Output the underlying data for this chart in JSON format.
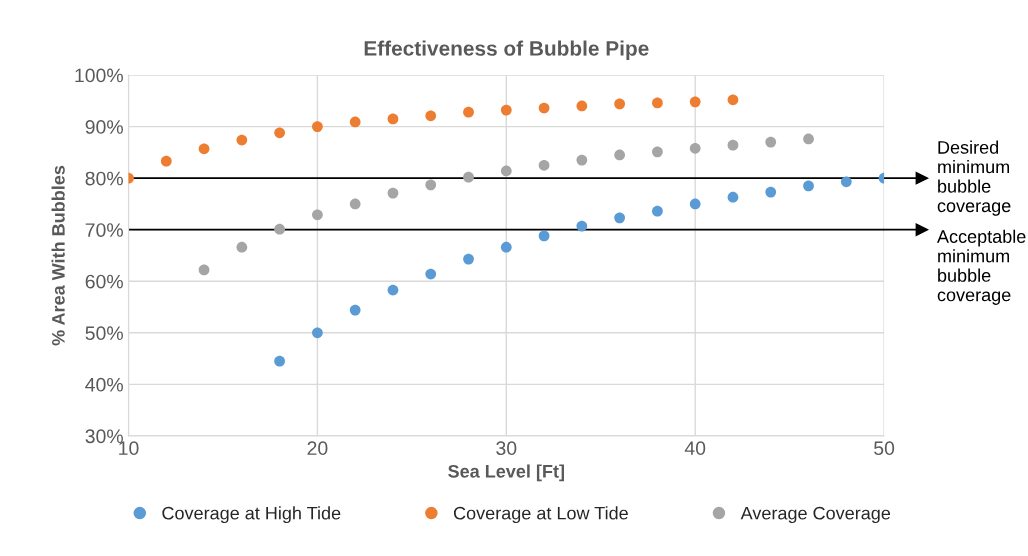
{
  "chart_data": {
    "type": "scatter",
    "title": "Effectiveness of Bubble Pipe",
    "xlabel": "Sea Level [Ft]",
    "ylabel": "% Area With Bubbles",
    "xlim": [
      10,
      50
    ],
    "xticks": [
      10,
      20,
      30,
      40,
      50
    ],
    "ylim": [
      30,
      100
    ],
    "yticks": [
      {
        "value": 30,
        "label": "30%"
      },
      {
        "value": 40,
        "label": "40%"
      },
      {
        "value": 50,
        "label": "50%"
      },
      {
        "value": 60,
        "label": "60%"
      },
      {
        "value": 70,
        "label": "70%"
      },
      {
        "value": 80,
        "label": "80%"
      },
      {
        "value": 90,
        "label": "90%"
      },
      {
        "value": 100,
        "label": "100%"
      }
    ],
    "grid": true,
    "legend": "bottom",
    "marker": "circle",
    "series": [
      {
        "name": "Coverage at High Tide",
        "color": "#5b9bd5",
        "x": [
          18,
          20,
          22,
          24,
          26,
          28,
          30,
          32,
          34,
          36,
          38,
          40,
          42,
          44,
          46,
          48,
          50
        ],
        "values": [
          44.5,
          50,
          54.4,
          58.3,
          61.4,
          64.3,
          66.6,
          68.8,
          70.7,
          72.3,
          73.6,
          75,
          76.3,
          77.3,
          78.5,
          79.3,
          80
        ]
      },
      {
        "name": "Coverage at Low Tide",
        "color": "#ed7d31",
        "x": [
          10,
          12,
          14,
          16,
          18,
          20,
          22,
          24,
          26,
          28,
          30,
          32,
          34,
          36,
          38,
          40,
          42
        ],
        "values": [
          80,
          83.3,
          85.7,
          87.4,
          88.8,
          90,
          90.9,
          91.5,
          92.1,
          92.8,
          93.2,
          93.6,
          94,
          94.4,
          94.6,
          94.8,
          95.2
        ]
      },
      {
        "name": "Average Coverage",
        "color": "#a5a5a5",
        "x": [
          14,
          16,
          18,
          20,
          22,
          24,
          26,
          28,
          30,
          32,
          34,
          36,
          38,
          40,
          42,
          44,
          46
        ],
        "values": [
          62.2,
          66.6,
          70.1,
          72.9,
          75,
          77.1,
          78.7,
          80.2,
          81.4,
          82.5,
          83.5,
          84.5,
          85.1,
          85.8,
          86.4,
          87,
          87.6
        ]
      }
    ],
    "ref_lines": [
      {
        "axis": "y",
        "value": 80,
        "label": "Desired\nminimum\nbubble\ncoverage",
        "color": "#000000"
      },
      {
        "axis": "y",
        "value": 70,
        "label": "Acceptable\nminimum\nbubble\ncoverage",
        "color": "#000000"
      }
    ]
  }
}
